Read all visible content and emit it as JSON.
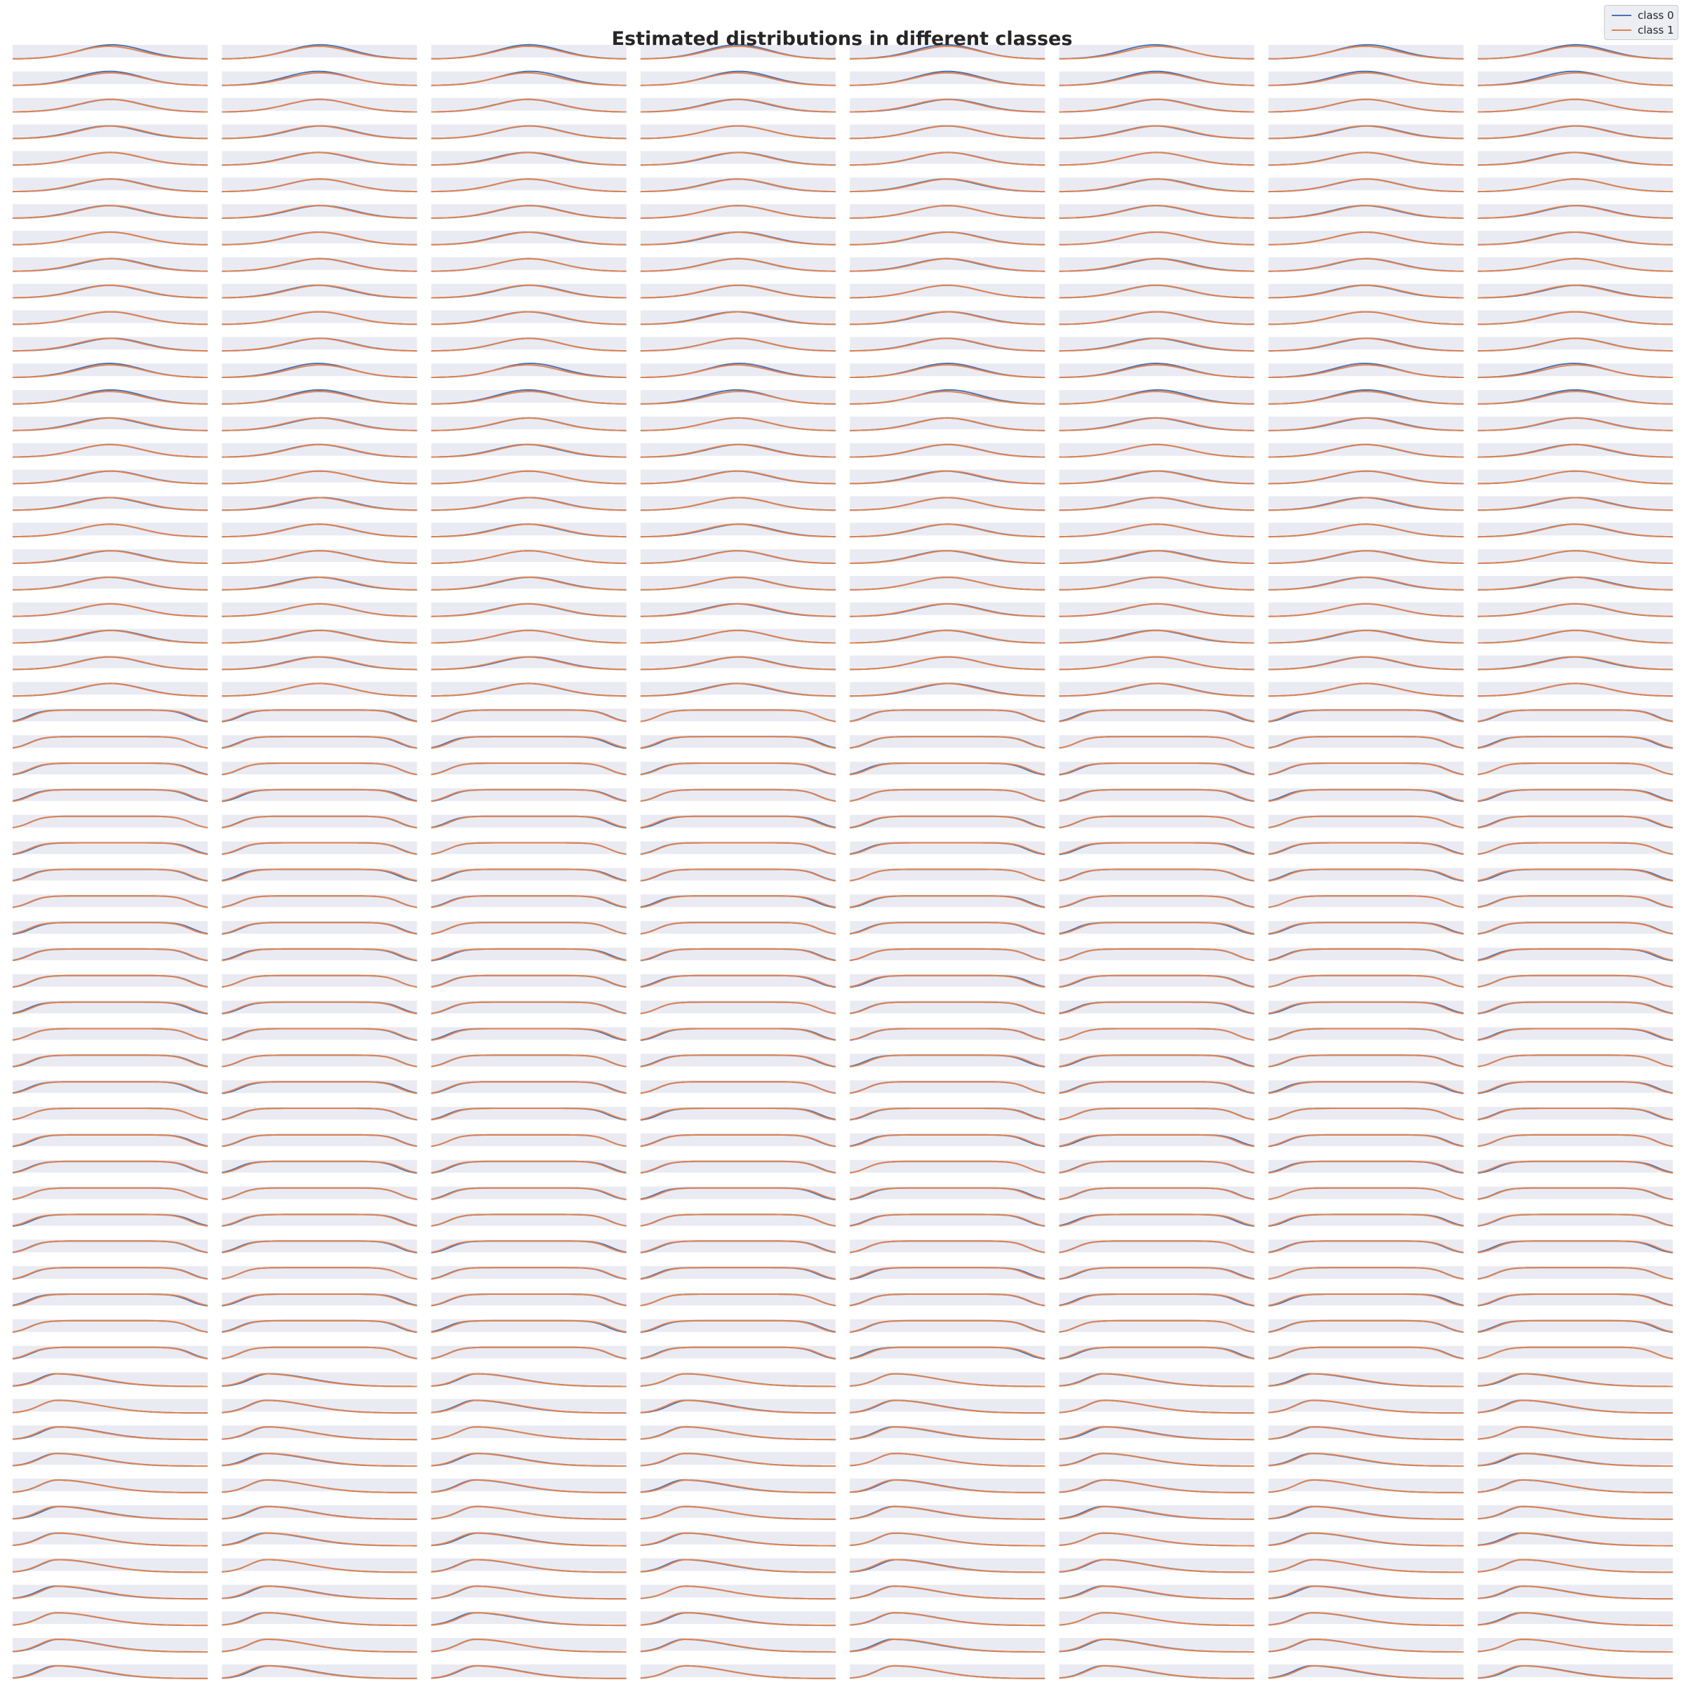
{
  "chart_data": {
    "type": "line",
    "title": "Estimated distributions in different classes",
    "series": [
      {
        "name": "class 0",
        "color": "#4c72b0"
      },
      {
        "name": "class 1",
        "color": "#dd8452"
      }
    ],
    "grid": {
      "rows": 62,
      "cols": 8
    },
    "panel_background": "#eaeaf2",
    "row_groups": [
      {
        "rows": [
          0,
          24
        ],
        "shape": "bell",
        "center": 0.5,
        "width": 0.15
      },
      {
        "rows": [
          25,
          49
        ],
        "shape": "plateau",
        "left": 0.12,
        "right": 0.88
      },
      {
        "rows": [
          50,
          61
        ],
        "shape": "skewed",
        "peak": 0.25
      }
    ],
    "legend_position": "top-right"
  }
}
